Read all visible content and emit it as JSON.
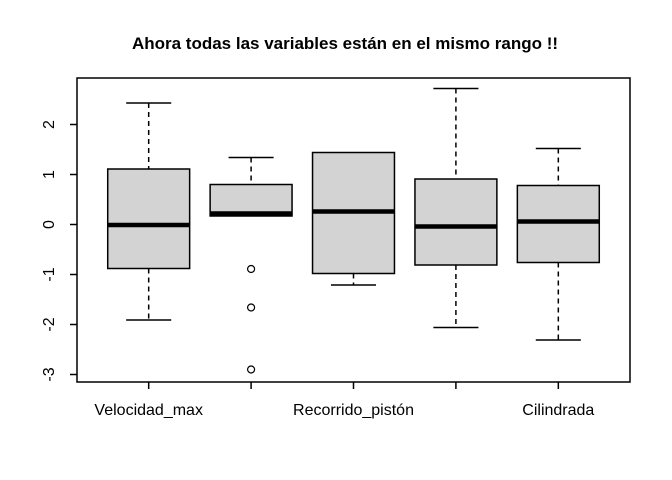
{
  "chart_data": {
    "type": "boxplot",
    "title": "Ahora todas las variables están en el mismo rango !!",
    "categories": [
      "Velocidad_max",
      "",
      "Recorrido_pistón",
      "",
      "Cilindrada"
    ],
    "x_tick_labels_shown": [
      "Velocidad_max",
      "Recorrido_pistón",
      "Cilindrada"
    ],
    "series": [
      {
        "name": "Velocidad_max",
        "whisker_low": -1.91,
        "q1": -0.88,
        "median": -0.01,
        "q3": 1.11,
        "whisker_high": 2.43,
        "outliers": []
      },
      {
        "name": "",
        "whisker_low": 0.17,
        "q1": 0.17,
        "median": 0.22,
        "q3": 0.8,
        "whisker_high": 1.34,
        "outliers": [
          -0.89,
          -1.66,
          -2.9
        ]
      },
      {
        "name": "Recorrido_pistón",
        "whisker_low": -1.21,
        "q1": -0.98,
        "median": 0.26,
        "q3": 1.44,
        "whisker_high": 1.44,
        "outliers": []
      },
      {
        "name": "",
        "whisker_low": -2.06,
        "q1": -0.81,
        "median": -0.04,
        "q3": 0.91,
        "whisker_high": 2.72,
        "outliers": []
      },
      {
        "name": "Cilindrada",
        "whisker_low": -2.31,
        "q1": -0.76,
        "median": 0.06,
        "q3": 0.78,
        "whisker_high": 1.52,
        "outliers": []
      }
    ],
    "y_ticks": [
      -3,
      -2,
      -1,
      0,
      1,
      2
    ],
    "ylim": [
      -3.15,
      2.93
    ],
    "xlim": [
      0.3,
      5.7
    ],
    "grid": "off",
    "legend": "none",
    "colors": {
      "box_fill": "#d3d3d3",
      "stroke": "#000000",
      "background": "#ffffff"
    }
  }
}
